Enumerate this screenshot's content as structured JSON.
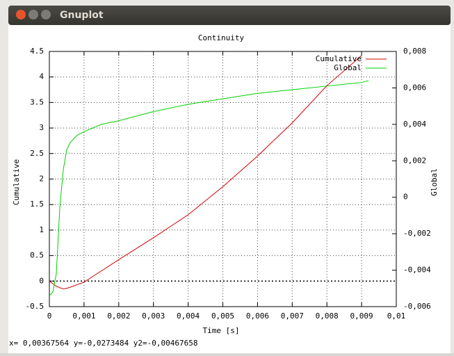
{
  "window": {
    "title": "Gnuplot",
    "status": "x= 0,00367564 y=-0,0273484 y2=-0,00467658"
  },
  "chart_data": {
    "type": "line",
    "title": "Continuity",
    "x_label": "Time [s]",
    "y_label": "Cumulative",
    "y2_label": "Global",
    "x": [
      0,
      0.0001,
      0.0002,
      0.0003,
      0.0004,
      0.0005,
      0.0006,
      0.0008,
      0.001,
      0.0015,
      0.002,
      0.003,
      0.004,
      0.005,
      0.006,
      0.007,
      0.008,
      0.009,
      0.0092
    ],
    "series": [
      {
        "name": "Cumulative",
        "color": "#d00000",
        "values": [
          0,
          -0.05,
          -0.1,
          -0.13,
          -0.15,
          -0.14,
          -0.12,
          -0.07,
          -0.02,
          0.2,
          0.42,
          0.85,
          1.3,
          1.85,
          2.45,
          3.1,
          3.83,
          4.42,
          null
        ]
      },
      {
        "name": "Global",
        "color": "#00d000",
        "axis": "y2",
        "values": [
          -0.0054,
          -0.0052,
          -0.0042,
          -0.0006,
          0.0015,
          0.0026,
          0.003,
          0.0034,
          0.0036,
          0.004,
          0.0042,
          0.0047,
          0.0051,
          0.0054,
          0.0057,
          0.0059,
          0.0061,
          0.0063,
          0.0064
        ]
      }
    ],
    "xlim": [
      0,
      0.01
    ],
    "xticks": [
      0,
      {
        "value": 0.001,
        "label": "0,001"
      },
      {
        "value": 0.002,
        "label": "0,002"
      },
      {
        "value": 0.003,
        "label": "0,003"
      },
      {
        "value": 0.004,
        "label": "0,004"
      },
      {
        "value": 0.005,
        "label": "0,005"
      },
      {
        "value": 0.006,
        "label": "0,006"
      },
      {
        "value": 0.007,
        "label": "0,007"
      },
      {
        "value": 0.008,
        "label": "0,008"
      },
      {
        "value": 0.009,
        "label": "0,009"
      },
      {
        "value": 0.01,
        "label": "0,01"
      }
    ],
    "ylim": [
      -0.5,
      4.5
    ],
    "yticks": [
      -0.5,
      0,
      0.5,
      1,
      1.5,
      2,
      2.5,
      3,
      3.5,
      4,
      4.5
    ],
    "y2lim": [
      -0.006,
      0.008
    ],
    "y2ticks": [
      {
        "value": -0.006,
        "label": "-0,006"
      },
      {
        "value": -0.004,
        "label": "-0,004"
      },
      {
        "value": -0.002,
        "label": "-0,002"
      },
      0,
      {
        "value": 0.002,
        "label": "0,002"
      },
      {
        "value": 0.004,
        "label": "0,004"
      },
      {
        "value": 0.006,
        "label": "0,006"
      },
      {
        "value": 0.008,
        "label": "0,008"
      }
    ],
    "grid": true,
    "legend": "top-right"
  }
}
